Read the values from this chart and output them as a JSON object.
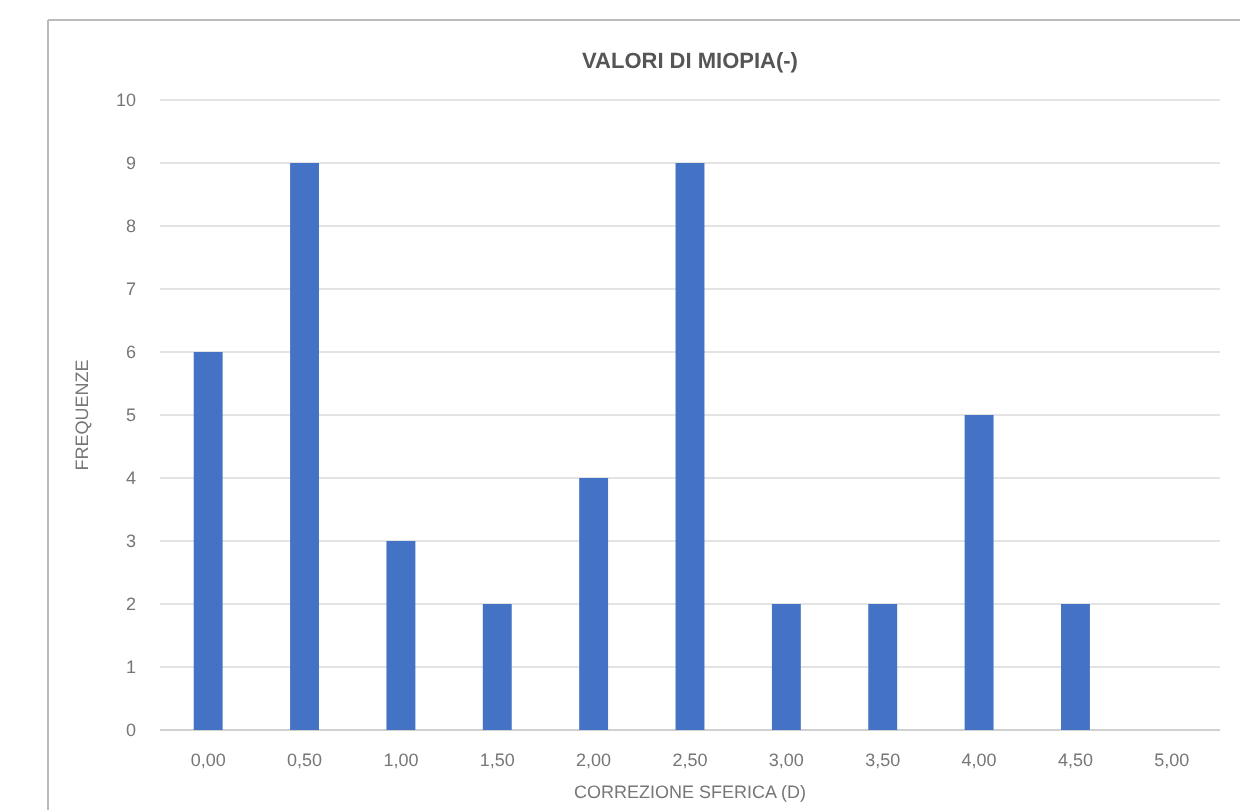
{
  "chart_data": {
    "type": "bar",
    "title": "VALORI DI MIOPIA(-)",
    "xlabel": "CORREZIONE SFERICA (D)",
    "ylabel": "FREQUENZE",
    "categories": [
      "0,00",
      "0,50",
      "1,00",
      "1,50",
      "2,00",
      "2,50",
      "3,00",
      "3,50",
      "4,00",
      "4,50",
      "5,00"
    ],
    "values": [
      6,
      9,
      3,
      2,
      4,
      9,
      2,
      2,
      5,
      2,
      0
    ],
    "color": "#4472c4",
    "ylim": [
      0,
      10
    ],
    "yticks": [
      0,
      1,
      2,
      3,
      4,
      5,
      6,
      7,
      8,
      9,
      10
    ],
    "grid": true
  }
}
